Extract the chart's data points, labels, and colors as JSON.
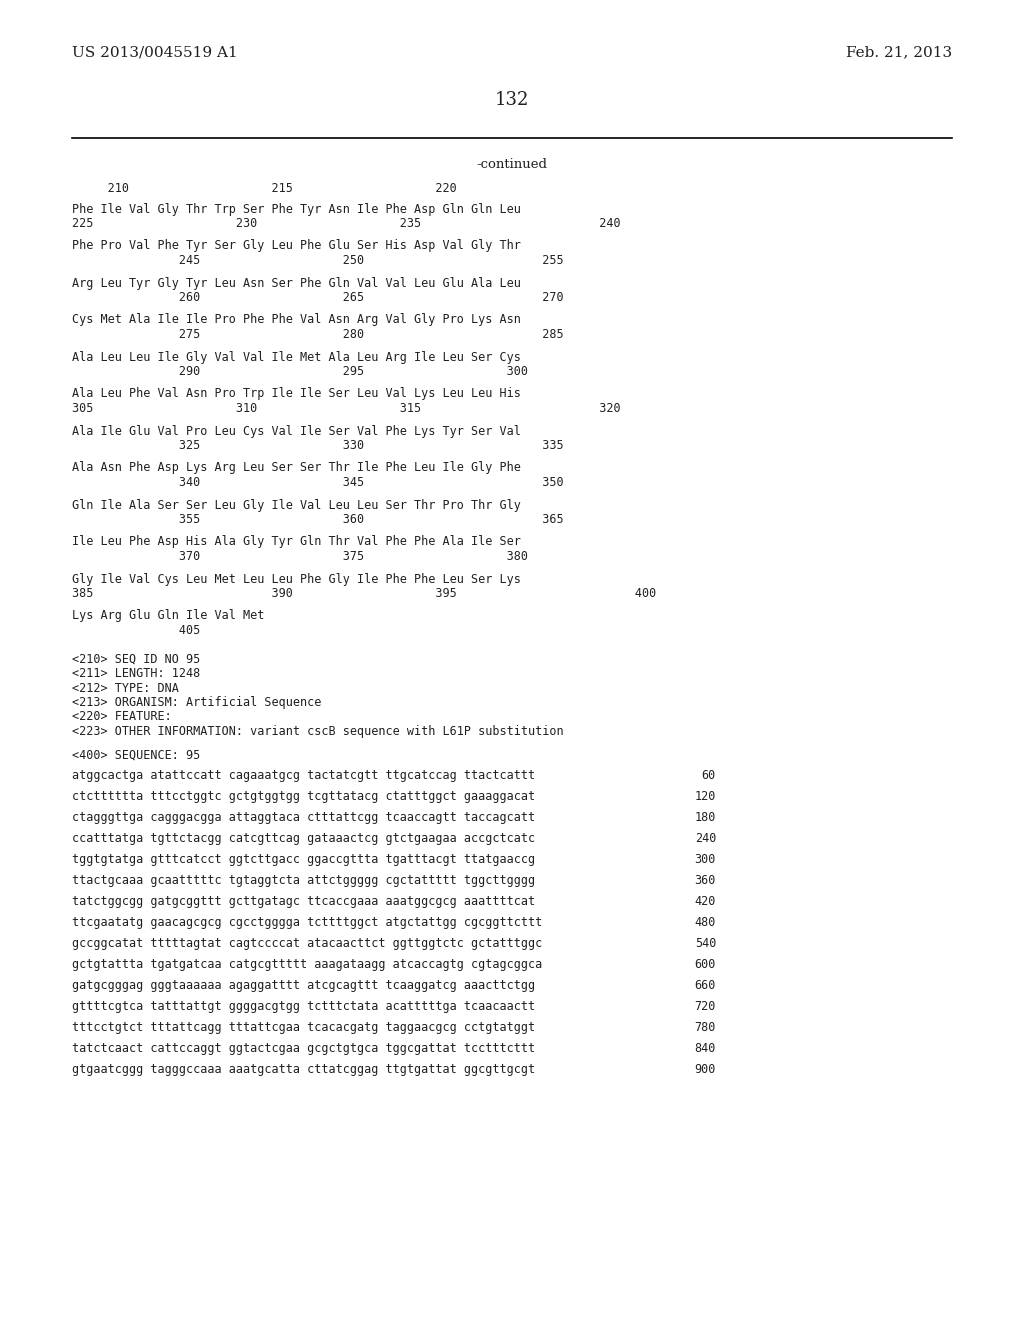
{
  "header_left": "US 2013/0045519 A1",
  "header_right": "Feb. 21, 2013",
  "page_number": "132",
  "continued_label": "-continued",
  "background_color": "#ffffff",
  "text_color": "#231f20",
  "mono_font_size": 8.5,
  "header_font_size": 11,
  "page_font_size": 13,
  "ruler_line": "     210                    215                    220",
  "sequence_blocks": [
    {
      "amino": "Phe Ile Val Gly Thr Trp Ser Phe Tyr Asn Ile Phe Asp Gln Gln Leu",
      "numbers": "225                    230                    235                         240"
    },
    {
      "amino": "Phe Pro Val Phe Tyr Ser Gly Leu Phe Glu Ser His Asp Val Gly Thr",
      "numbers": "               245                    250                         255"
    },
    {
      "amino": "Arg Leu Tyr Gly Tyr Leu Asn Ser Phe Gln Val Val Leu Glu Ala Leu",
      "numbers": "               260                    265                         270"
    },
    {
      "amino": "Cys Met Ala Ile Ile Pro Phe Phe Val Asn Arg Val Gly Pro Lys Asn",
      "numbers": "               275                    280                         285"
    },
    {
      "amino": "Ala Leu Leu Ile Gly Val Val Ile Met Ala Leu Arg Ile Leu Ser Cys",
      "numbers": "               290                    295                    300"
    },
    {
      "amino": "Ala Leu Phe Val Asn Pro Trp Ile Ile Ser Leu Val Lys Leu Leu His",
      "numbers": "305                    310                    315                         320"
    },
    {
      "amino": "Ala Ile Glu Val Pro Leu Cys Val Ile Ser Val Phe Lys Tyr Ser Val",
      "numbers": "               325                    330                         335"
    },
    {
      "amino": "Ala Asn Phe Asp Lys Arg Leu Ser Ser Thr Ile Phe Leu Ile Gly Phe",
      "numbers": "               340                    345                         350"
    },
    {
      "amino": "Gln Ile Ala Ser Ser Leu Gly Ile Val Leu Leu Ser Thr Pro Thr Gly",
      "numbers": "               355                    360                         365"
    },
    {
      "amino": "Ile Leu Phe Asp His Ala Gly Tyr Gln Thr Val Phe Phe Ala Ile Ser",
      "numbers": "               370                    375                    380"
    },
    {
      "amino": "Gly Ile Val Cys Leu Met Leu Leu Phe Gly Ile Phe Phe Leu Ser Lys",
      "numbers": "385                         390                    395                         400"
    },
    {
      "amino": "Lys Arg Glu Gln Ile Val Met",
      "numbers": "               405"
    }
  ],
  "metadata_lines": [
    "<210> SEQ ID NO 95",
    "<211> LENGTH: 1248",
    "<212> TYPE: DNA",
    "<213> ORGANISM: Artificial Sequence",
    "<220> FEATURE:",
    "<223> OTHER INFORMATION: variant cscB sequence with L61P substitution"
  ],
  "sequence_label": "<400> SEQUENCE: 95",
  "dna_sequences": [
    {
      "seq": "atggcactga atattccatt cagaaatgcg tactatcgtt ttgcatccag ttactcattt",
      "num": "60"
    },
    {
      "seq": "ctctttttta tttcctggtc gctgtggtgg tcgttatacg ctatttggct gaaaggacat",
      "num": "120"
    },
    {
      "seq": "ctagggttga cagggacgga attaggtaca ctttattcgg tcaaccagtt taccagcatt",
      "num": "180"
    },
    {
      "seq": "ccatttatga tgttctacgg catcgttcag gataaactcg gtctgaagaa accgctcatc",
      "num": "240"
    },
    {
      "seq": "tggtgtatga gtttcatcct ggtcttgacc ggaccgttta tgatttacgt ttatgaaccg",
      "num": "300"
    },
    {
      "seq": "ttactgcaaa gcaatttttc tgtaggtcta attctggggg cgctattttt tggcttgggg",
      "num": "360"
    },
    {
      "seq": "tatctggcgg gatgcggttt gcttgatagc ttcaccgaaa aaatggcgcg aaattttcat",
      "num": "420"
    },
    {
      "seq": "ttcgaatatg gaacagcgcg cgcctgggga tcttttggct atgctattgg cgcggttcttt",
      "num": "480"
    },
    {
      "seq": "gccggcatat tttttagtat cagtccccat atacaacttct ggttggtctc gctatttggc",
      "num": "540"
    },
    {
      "seq": "gctgtattta tgatgatcaa catgcgttttt aaagataagg atcaccagtg cgtagcggca",
      "num": "600"
    },
    {
      "seq": "gatgcgggag gggtaaaaaa agaggatttt atcgcagttt tcaaggatcg aaacttctgg",
      "num": "660"
    },
    {
      "seq": "gttttcgtca tatttattgt ggggacgtgg tctttctata acatttttga tcaacaactt",
      "num": "720"
    },
    {
      "seq": "tttcctgtct tttattcagg tttattcgaa tcacacgatg taggaacgcg cctgtatggt",
      "num": "780"
    },
    {
      "seq": "tatctcaact cattccaggt ggtactcgaa gcgctgtgca tggcgattat tcctttcttt",
      "num": "840"
    },
    {
      "seq": "gtgaatcggg tagggccaaa aaatgcatta cttatcggag ttgtgattat ggcgttgcgt",
      "num": "900"
    }
  ]
}
